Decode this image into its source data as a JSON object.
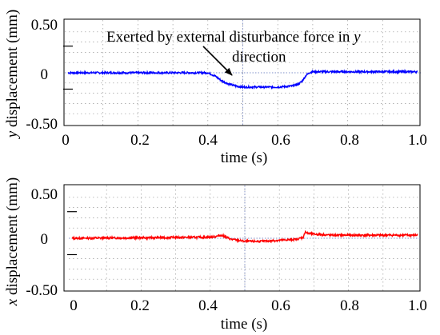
{
  "chart_data": [
    {
      "type": "line",
      "series": [
        {
          "color": "#0000ff",
          "x": [
            0.0,
            0.4,
            0.42,
            0.44,
            0.46,
            0.48,
            0.5,
            0.55,
            0.6,
            0.64,
            0.66,
            0.67,
            0.68,
            0.69,
            0.7,
            0.75,
            1.0
          ],
          "y": [
            0.0,
            0.0,
            -0.03,
            -0.08,
            -0.11,
            -0.13,
            -0.14,
            -0.14,
            -0.14,
            -0.13,
            -0.11,
            -0.08,
            -0.03,
            0.0,
            0.01,
            0.01,
            0.01
          ]
        }
      ],
      "xlabel_main": "time (s)",
      "ylabel_var": "y",
      "ylabel_rest": " displacement (mm)",
      "xlim": [
        0,
        1
      ],
      "ylim": [
        -0.5,
        0.5
      ],
      "xticks": [
        0,
        0.2,
        0.4,
        0.6,
        0.8,
        1.0
      ],
      "xtick_labels": [
        "0",
        "0.2",
        "0.4",
        "0.6",
        "0.8",
        "1.0"
      ],
      "ytick_labels": [
        "0.50",
        "0",
        "-0.50"
      ],
      "yticks": [
        0.5,
        0,
        -0.5
      ],
      "grid": true,
      "annotation": {
        "line1_text": "Exerted by external disturbance force in ",
        "line1_var": "y",
        "line2_text": "direction",
        "arrow_to": [
          0.49,
          -0.1
        ]
      }
    },
    {
      "type": "line",
      "series": [
        {
          "color": "#ff0000",
          "x": [
            0.0,
            0.4,
            0.42,
            0.43,
            0.44,
            0.46,
            0.5,
            0.55,
            0.6,
            0.65,
            0.67,
            0.675,
            0.68,
            0.7,
            0.75,
            1.0
          ],
          "y": [
            0.0,
            0.01,
            0.02,
            0.03,
            0.02,
            -0.01,
            -0.03,
            -0.03,
            -0.02,
            -0.01,
            0.01,
            0.07,
            0.05,
            0.04,
            0.03,
            0.03
          ]
        }
      ],
      "xlabel_main": "time (s)",
      "ylabel_var": "x",
      "ylabel_rest": " displacement (mm)",
      "xlim": [
        0,
        1
      ],
      "ylim": [
        -0.5,
        0.5
      ],
      "xticks": [
        0,
        0.2,
        0.4,
        0.6,
        0.8,
        1.0
      ],
      "xtick_labels": [
        "0",
        "0.2",
        "0.4",
        "0.6",
        "0.8",
        "1.0"
      ],
      "ytick_labels": [
        "0.50",
        "0",
        "-0.50"
      ],
      "yticks": [
        0.5,
        0,
        -0.5
      ],
      "grid": true
    }
  ]
}
